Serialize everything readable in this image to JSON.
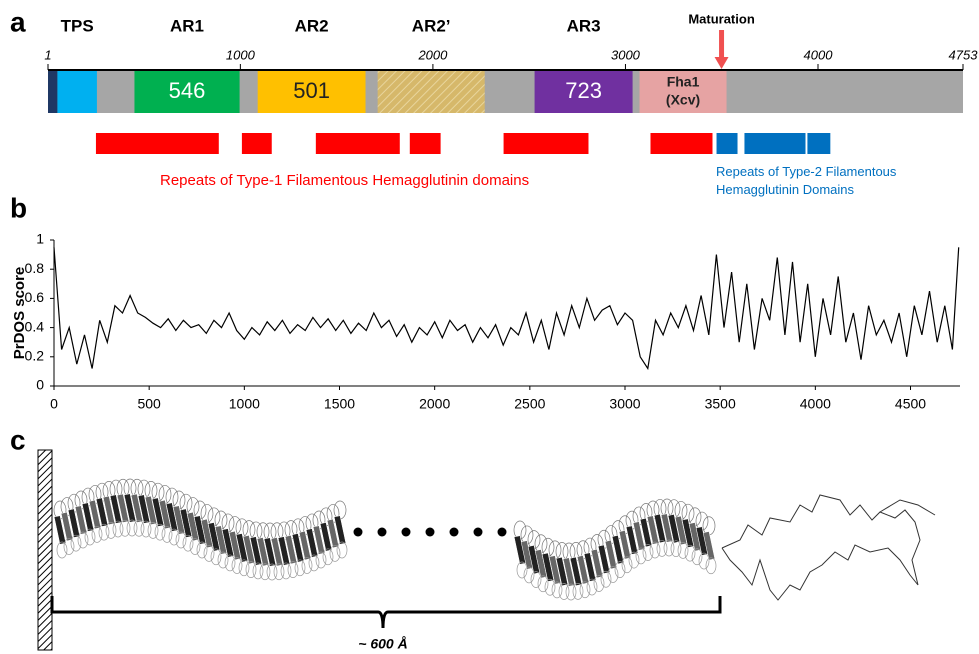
{
  "chart_data": [
    {
      "type": "domain_map",
      "panel_label": "a",
      "xlim": [
        1,
        4753
      ],
      "xticks": [
        1,
        1000,
        2000,
        3000,
        4000,
        4753
      ],
      "backbone_color": "#a6a6a6",
      "domains": [
        {
          "start": 1,
          "end": 50,
          "color": "#1f3864"
        },
        {
          "start": 50,
          "end": 255,
          "color": "#00b0f0",
          "region": "TPS"
        },
        {
          "start": 450,
          "end": 996,
          "color": "#00b050",
          "region": "AR1",
          "label": [
            "546"
          ],
          "label_color": "#ffffff"
        },
        {
          "start": 1090,
          "end": 1650,
          "color": "#ffc000",
          "region": "AR2",
          "label": [
            "501"
          ],
          "label_color": "#222222"
        },
        {
          "start": 1713,
          "end": 2269,
          "color": "#d6b86a",
          "region": "AR2’",
          "hatched": true
        },
        {
          "start": 2528,
          "end": 3037,
          "color": "#7030a0",
          "region": "AR3",
          "label": [
            "723"
          ],
          "label_color": "#ffffff"
        },
        {
          "start": 3073,
          "end": 3525,
          "color": "#e6a3a3",
          "label": [
            "Fha1",
            "(Xcv)"
          ],
          "label_color": "#222222"
        }
      ],
      "annotations": [
        {
          "text": "Maturation",
          "x": 3499,
          "color": "#f05050"
        }
      ],
      "repeats": [
        {
          "name": "Repeats of Type-1 Filamentous Hemagglutinin domains",
          "color": "#ff0000",
          "ranges": [
            [
              250,
              888
            ],
            [
              1008,
              1163
            ],
            [
              1392,
              1828
            ],
            [
              1880,
              2040
            ],
            [
              2367,
              2808
            ],
            [
              3130,
              3452
            ]
          ]
        },
        {
          "name": "Repeats of Type-2 Filamentous Hemagglutinin Domains",
          "color": "#0070c0",
          "ranges": [
            [
              3473,
              3582
            ],
            [
              3618,
              3935
            ],
            [
              3945,
              4064
            ]
          ]
        }
      ]
    },
    {
      "type": "line",
      "panel_label": "b",
      "y_label": "PrDOS score",
      "color": "#000000",
      "xlim": [
        0,
        4760
      ],
      "xticks": [
        0,
        500,
        1000,
        1500,
        2000,
        2500,
        3000,
        3500,
        4000,
        4500
      ],
      "ylim": [
        0,
        1
      ],
      "yticks": [
        0,
        0.2,
        0.4,
        0.6,
        0.8,
        1
      ],
      "x": [
        0,
        40,
        80,
        120,
        160,
        200,
        240,
        280,
        320,
        360,
        400,
        440,
        480,
        520,
        560,
        600,
        640,
        680,
        720,
        760,
        800,
        840,
        880,
        920,
        960,
        1000,
        1040,
        1080,
        1120,
        1160,
        1200,
        1240,
        1280,
        1320,
        1360,
        1400,
        1440,
        1480,
        1520,
        1560,
        1600,
        1640,
        1680,
        1720,
        1760,
        1800,
        1840,
        1880,
        1920,
        1960,
        2000,
        2040,
        2080,
        2120,
        2160,
        2200,
        2240,
        2280,
        2320,
        2360,
        2400,
        2440,
        2480,
        2520,
        2560,
        2600,
        2640,
        2680,
        2720,
        2760,
        2800,
        2840,
        2880,
        2920,
        2960,
        3000,
        3040,
        3080,
        3120,
        3160,
        3200,
        3240,
        3280,
        3320,
        3360,
        3400,
        3440,
        3480,
        3520,
        3560,
        3600,
        3640,
        3680,
        3720,
        3760,
        3800,
        3840,
        3880,
        3920,
        3960,
        4000,
        4040,
        4080,
        4120,
        4160,
        4200,
        4240,
        4280,
        4320,
        4360,
        4400,
        4440,
        4480,
        4520,
        4560,
        4600,
        4640,
        4680,
        4720,
        4753
      ],
      "values": [
        0.95,
        0.25,
        0.4,
        0.15,
        0.35,
        0.12,
        0.45,
        0.3,
        0.55,
        0.5,
        0.62,
        0.5,
        0.47,
        0.43,
        0.4,
        0.46,
        0.38,
        0.45,
        0.4,
        0.42,
        0.36,
        0.45,
        0.4,
        0.5,
        0.38,
        0.32,
        0.4,
        0.35,
        0.44,
        0.38,
        0.45,
        0.36,
        0.42,
        0.38,
        0.47,
        0.4,
        0.46,
        0.38,
        0.45,
        0.36,
        0.43,
        0.38,
        0.5,
        0.4,
        0.45,
        0.34,
        0.42,
        0.3,
        0.4,
        0.35,
        0.44,
        0.33,
        0.45,
        0.38,
        0.42,
        0.3,
        0.4,
        0.33,
        0.42,
        0.28,
        0.4,
        0.35,
        0.5,
        0.3,
        0.45,
        0.25,
        0.5,
        0.35,
        0.55,
        0.4,
        0.6,
        0.45,
        0.52,
        0.55,
        0.42,
        0.5,
        0.45,
        0.2,
        0.12,
        0.45,
        0.35,
        0.5,
        0.4,
        0.55,
        0.38,
        0.62,
        0.35,
        0.9,
        0.4,
        0.78,
        0.3,
        0.7,
        0.25,
        0.6,
        0.45,
        0.88,
        0.35,
        0.85,
        0.3,
        0.7,
        0.2,
        0.6,
        0.35,
        0.75,
        0.3,
        0.5,
        0.18,
        0.55,
        0.35,
        0.45,
        0.3,
        0.5,
        0.2,
        0.55,
        0.35,
        0.65,
        0.3,
        0.55,
        0.25,
        0.95
      ]
    }
  ],
  "panel_c": {
    "panel_label": "c",
    "length_label": "~ 600 Å"
  }
}
